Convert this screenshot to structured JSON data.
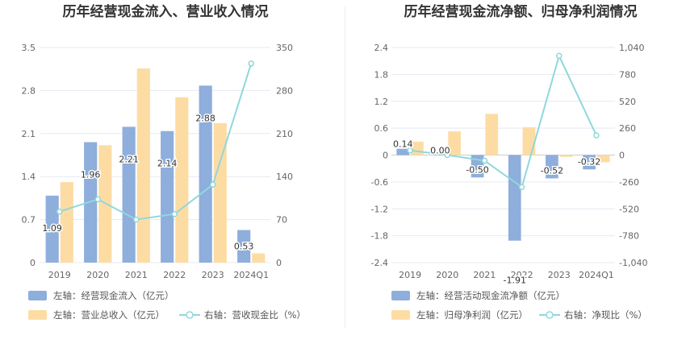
{
  "chart_data": [
    {
      "type": "bar",
      "title": "历年经营现金流入、营业收入情况",
      "categories": [
        "2019",
        "2020",
        "2021",
        "2022",
        "2023",
        "2024Q1"
      ],
      "left_axis": {
        "ylim": [
          0,
          3.5
        ],
        "ticks": [
          "0",
          "0.7",
          "1.4",
          "2.1",
          "2.8",
          "3.5"
        ]
      },
      "right_axis": {
        "ylim": [
          0,
          350
        ],
        "ticks": [
          "0",
          "70",
          "140",
          "210",
          "280",
          "350"
        ]
      },
      "series": [
        {
          "name": "左轴：经营现金流入（亿元）",
          "axis": "left",
          "kind": "bar",
          "color": "#8eaedc",
          "values": [
            1.09,
            1.96,
            2.21,
            2.14,
            2.88,
            0.53
          ],
          "labels": [
            "1.09",
            "1.96",
            "2.21",
            "2.14",
            "2.88",
            "0.53"
          ]
        },
        {
          "name": "左轴：营业总收入（亿元）",
          "axis": "left",
          "kind": "bar",
          "color": "#fddca4",
          "values": [
            1.31,
            1.91,
            3.16,
            2.69,
            2.27,
            0.15
          ]
        },
        {
          "name": "右轴：营收现金比（%）",
          "axis": "right",
          "kind": "line",
          "color": "#8fd8dc",
          "values": [
            83,
            103,
            70,
            79,
            127,
            324
          ]
        }
      ],
      "grid": true,
      "legend_position": "bottom-left"
    },
    {
      "type": "bar",
      "title": "历年经营现金流净额、归母净利润情况",
      "categories": [
        "2019",
        "2020",
        "2021",
        "2022",
        "2023",
        "2024Q1"
      ],
      "left_axis": {
        "ylim": [
          -2.4,
          2.4
        ],
        "ticks": [
          "-2.4",
          "-1.8",
          "-1.2",
          "-0.6",
          "0",
          "0.6",
          "1.2",
          "1.8",
          "2.4"
        ]
      },
      "right_axis": {
        "ylim": [
          -1040,
          1040
        ],
        "ticks": [
          "-1,040",
          "-780",
          "-520",
          "-260",
          "0",
          "260",
          "520",
          "780",
          "1,040"
        ]
      },
      "series": [
        {
          "name": "左轴：经营活动现金流净额（亿元）",
          "axis": "left",
          "kind": "bar",
          "color": "#8eaedc",
          "values": [
            0.14,
            0.0,
            -0.5,
            -1.91,
            -0.52,
            -0.32
          ],
          "labels": [
            "0.14",
            "0.00",
            "-0.50",
            "-1.91",
            "-0.52",
            "-0.32"
          ]
        },
        {
          "name": "左轴：归母净利润（亿元）",
          "axis": "left",
          "kind": "bar",
          "color": "#fddca4",
          "values": [
            0.3,
            0.53,
            0.92,
            0.62,
            -0.04,
            -0.16
          ]
        },
        {
          "name": "右轴：净现比（%）",
          "axis": "right",
          "kind": "line",
          "color": "#8fd8dc",
          "values": [
            45,
            0,
            -55,
            -310,
            960,
            190
          ]
        }
      ],
      "grid": true,
      "legend_position": "bottom-left"
    }
  ]
}
